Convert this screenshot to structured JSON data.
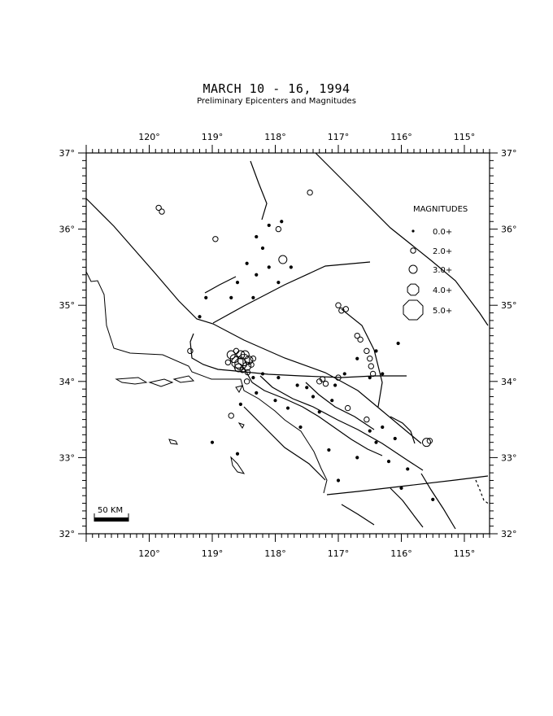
{
  "header": {
    "title": "MARCH 10 - 16, 1994",
    "subtitle": "Preliminary Epicenters and Magnitudes"
  },
  "map": {
    "lon_range": [
      -121.0,
      -114.6
    ],
    "lat_range": [
      32.0,
      37.0
    ],
    "top_lon_labels": [
      "120°",
      "119°",
      "118°",
      "117°",
      "116°",
      "115°"
    ],
    "bottom_lon_labels": [
      "120°",
      "119°",
      "118°",
      "117°",
      "116°",
      "115°"
    ],
    "lat_labels": [
      "37°",
      "36°",
      "35°",
      "34°",
      "33°",
      "32°"
    ],
    "scale_bar_label": "50 KM"
  },
  "legend": {
    "title": "MAGNITUDES",
    "items": [
      {
        "label": "0.0+",
        "mag": 0
      },
      {
        "label": "2.0+",
        "mag": 2
      },
      {
        "label": "3.0+",
        "mag": 3
      },
      {
        "label": "4.0+",
        "mag": 4
      },
      {
        "label": "5.0+",
        "mag": 5
      }
    ]
  },
  "epicenters": [
    [
      -119.85,
      36.28,
      2
    ],
    [
      -119.8,
      36.23,
      2
    ],
    [
      -118.95,
      35.87,
      2
    ],
    [
      -117.45,
      36.48,
      2
    ],
    [
      -117.95,
      36.0,
      2
    ],
    [
      -117.88,
      35.6,
      3
    ],
    [
      -118.45,
      35.55,
      0
    ],
    [
      -118.3,
      35.4,
      0
    ],
    [
      -118.1,
      35.5,
      0
    ],
    [
      -117.95,
      35.3,
      0
    ],
    [
      -118.6,
      35.3,
      0
    ],
    [
      -119.1,
      35.1,
      0
    ],
    [
      -118.7,
      35.1,
      0
    ],
    [
      -118.35,
      35.1,
      0
    ],
    [
      -119.2,
      34.85,
      0
    ],
    [
      -117.75,
      35.5,
      0
    ],
    [
      -118.2,
      35.75,
      0
    ],
    [
      -117.9,
      36.1,
      0
    ],
    [
      -118.1,
      36.05,
      0
    ],
    [
      -118.3,
      35.9,
      0
    ],
    [
      -117.0,
      35.0,
      2
    ],
    [
      -116.95,
      34.93,
      2
    ],
    [
      -116.88,
      34.95,
      2
    ],
    [
      -116.7,
      34.6,
      2
    ],
    [
      -116.65,
      34.55,
      2
    ],
    [
      -116.55,
      34.4,
      2
    ],
    [
      -116.5,
      34.3,
      2
    ],
    [
      -116.48,
      34.2,
      2
    ],
    [
      -116.45,
      34.1,
      2
    ],
    [
      -116.5,
      34.05,
      0
    ],
    [
      -116.3,
      34.1,
      0
    ],
    [
      -116.05,
      34.5,
      0
    ],
    [
      -116.4,
      34.4,
      0
    ],
    [
      -116.7,
      34.3,
      0
    ],
    [
      -116.9,
      34.1,
      0
    ],
    [
      -117.0,
      34.05,
      2
    ],
    [
      -117.3,
      34.0,
      2
    ],
    [
      -117.25,
      34.03,
      2
    ],
    [
      -117.2,
      33.97,
      2
    ],
    [
      -117.05,
      33.95,
      0
    ],
    [
      -117.5,
      33.92,
      0
    ],
    [
      -117.65,
      33.95,
      0
    ],
    [
      -117.4,
      33.8,
      0
    ],
    [
      -117.1,
      33.75,
      0
    ],
    [
      -116.85,
      33.65,
      2
    ],
    [
      -116.55,
      33.5,
      2
    ],
    [
      -116.5,
      33.35,
      0
    ],
    [
      -116.4,
      33.2,
      0
    ],
    [
      -116.3,
      33.4,
      0
    ],
    [
      -116.1,
      33.25,
      0
    ],
    [
      -115.6,
      33.2,
      3
    ],
    [
      -115.55,
      33.22,
      2
    ],
    [
      -116.7,
      33.0,
      0
    ],
    [
      -116.2,
      32.95,
      0
    ],
    [
      -115.9,
      32.85,
      0
    ],
    [
      -116.0,
      32.6,
      0
    ],
    [
      -115.5,
      32.45,
      0
    ],
    [
      -117.3,
      33.6,
      0
    ],
    [
      -117.6,
      33.4,
      0
    ],
    [
      -117.15,
      33.1,
      0
    ],
    [
      -118.55,
      34.23,
      4
    ],
    [
      -118.5,
      34.28,
      4
    ],
    [
      -118.6,
      34.25,
      4
    ],
    [
      -118.45,
      34.2,
      3
    ],
    [
      -118.55,
      34.35,
      3
    ],
    [
      -118.65,
      34.3,
      3
    ],
    [
      -118.48,
      34.35,
      3
    ],
    [
      -118.42,
      34.28,
      3
    ],
    [
      -118.58,
      34.18,
      3
    ],
    [
      -118.7,
      34.35,
      3
    ],
    [
      -118.38,
      34.22,
      2
    ],
    [
      -118.52,
      34.15,
      2
    ],
    [
      -118.62,
      34.4,
      2
    ],
    [
      -118.75,
      34.25,
      2
    ],
    [
      -118.35,
      34.3,
      2
    ],
    [
      -118.44,
      34.12,
      2
    ],
    [
      -119.35,
      34.4,
      2
    ],
    [
      -118.45,
      34.0,
      2
    ],
    [
      -118.35,
      34.05,
      0
    ],
    [
      -118.7,
      33.55,
      2
    ],
    [
      -118.55,
      33.7,
      0
    ],
    [
      -118.3,
      33.85,
      0
    ],
    [
      -118.0,
      33.75,
      0
    ],
    [
      -117.8,
      33.65,
      0
    ],
    [
      -117.95,
      34.05,
      0
    ],
    [
      -118.2,
      34.1,
      0
    ],
    [
      -119.0,
      33.2,
      0
    ],
    [
      -118.6,
      33.05,
      0
    ],
    [
      -117.0,
      32.7,
      0
    ]
  ]
}
